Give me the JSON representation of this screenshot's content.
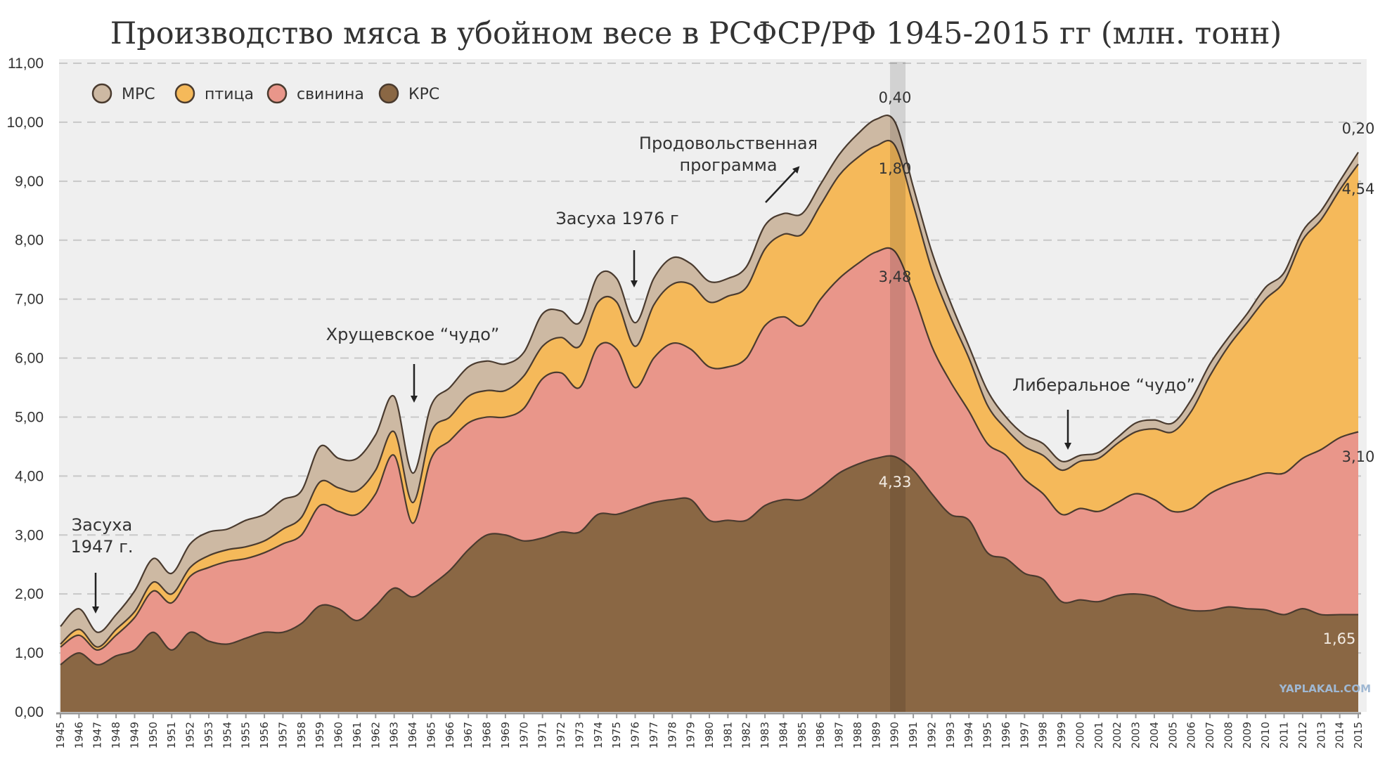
{
  "chart_data": {
    "type": "area",
    "stacked": true,
    "title": "Производство мяса в убойном весе в РСФСР/РФ 1945-2015 гг (млн. тонн)",
    "xlabel": "",
    "ylabel": "",
    "ylim": [
      0,
      11
    ],
    "yticks": [
      "0,00",
      "1,00",
      "2,00",
      "3,00",
      "4,00",
      "5,00",
      "6,00",
      "7,00",
      "8,00",
      "9,00",
      "10,00",
      "11,00"
    ],
    "grid": true,
    "legend_position": "top-left",
    "x": [
      1945,
      1946,
      1947,
      1948,
      1949,
      1950,
      1951,
      1952,
      1953,
      1954,
      1955,
      1956,
      1957,
      1958,
      1959,
      1960,
      1961,
      1962,
      1963,
      1964,
      1965,
      1966,
      1967,
      1968,
      1969,
      1970,
      1971,
      1972,
      1973,
      1974,
      1975,
      1976,
      1977,
      1978,
      1979,
      1980,
      1981,
      1982,
      1983,
      1984,
      1985,
      1986,
      1987,
      1988,
      1989,
      1990,
      1991,
      1992,
      1993,
      1994,
      1995,
      1996,
      1997,
      1998,
      1999,
      2000,
      2001,
      2002,
      2003,
      2004,
      2005,
      2006,
      2007,
      2008,
      2009,
      2010,
      2011,
      2012,
      2013,
      2014,
      2015
    ],
    "series": [
      {
        "name": "КРС",
        "color": "#8a6744",
        "values": [
          0.8,
          1.0,
          0.8,
          0.95,
          1.05,
          1.35,
          1.05,
          1.35,
          1.2,
          1.15,
          1.25,
          1.35,
          1.35,
          1.5,
          1.8,
          1.75,
          1.55,
          1.8,
          2.1,
          1.95,
          2.15,
          2.4,
          2.75,
          3.0,
          3.0,
          2.9,
          2.95,
          3.05,
          3.05,
          3.35,
          3.35,
          3.45,
          3.55,
          3.6,
          3.6,
          3.25,
          3.25,
          3.25,
          3.5,
          3.6,
          3.6,
          3.8,
          4.05,
          4.2,
          4.3,
          4.33,
          4.1,
          3.7,
          3.35,
          3.25,
          2.7,
          2.6,
          2.35,
          2.25,
          1.87,
          1.9,
          1.87,
          1.97,
          2.0,
          1.95,
          1.8,
          1.72,
          1.72,
          1.78,
          1.75,
          1.73,
          1.65,
          1.75,
          1.65,
          1.65,
          1.65
        ]
      },
      {
        "name": "свинина",
        "color": "#e9968a",
        "values": [
          0.3,
          0.3,
          0.25,
          0.35,
          0.55,
          0.7,
          0.8,
          0.95,
          1.25,
          1.4,
          1.35,
          1.35,
          1.5,
          1.5,
          1.7,
          1.65,
          1.8,
          1.9,
          2.25,
          1.25,
          2.15,
          2.2,
          2.15,
          2.0,
          2.0,
          2.25,
          2.7,
          2.7,
          2.45,
          2.85,
          2.8,
          2.05,
          2.45,
          2.65,
          2.55,
          2.6,
          2.6,
          2.75,
          3.05,
          3.1,
          2.95,
          3.2,
          3.3,
          3.4,
          3.5,
          3.48,
          3.0,
          2.5,
          2.25,
          1.85,
          1.85,
          1.75,
          1.6,
          1.45,
          1.48,
          1.55,
          1.53,
          1.58,
          1.7,
          1.65,
          1.6,
          1.73,
          1.98,
          2.07,
          2.2,
          2.32,
          2.4,
          2.55,
          2.8,
          3.0,
          3.1
        ]
      },
      {
        "name": "птица",
        "color": "#f5b95a",
        "values": [
          0.05,
          0.1,
          0.05,
          0.1,
          0.1,
          0.15,
          0.15,
          0.15,
          0.2,
          0.2,
          0.2,
          0.2,
          0.25,
          0.3,
          0.4,
          0.4,
          0.4,
          0.4,
          0.4,
          0.35,
          0.45,
          0.4,
          0.45,
          0.45,
          0.45,
          0.55,
          0.55,
          0.6,
          0.7,
          0.75,
          0.8,
          0.7,
          0.9,
          1.0,
          1.1,
          1.1,
          1.2,
          1.2,
          1.3,
          1.4,
          1.55,
          1.6,
          1.75,
          1.8,
          1.8,
          1.8,
          1.5,
          1.3,
          1.1,
          0.9,
          0.65,
          0.45,
          0.55,
          0.65,
          0.75,
          0.8,
          0.9,
          1.0,
          1.05,
          1.2,
          1.35,
          1.65,
          2.0,
          2.35,
          2.65,
          2.95,
          3.25,
          3.7,
          3.9,
          4.2,
          4.54
        ]
      },
      {
        "name": "МРС",
        "color": "#cdb9a3",
        "values": [
          0.3,
          0.35,
          0.25,
          0.25,
          0.35,
          0.4,
          0.35,
          0.4,
          0.4,
          0.35,
          0.45,
          0.45,
          0.5,
          0.45,
          0.6,
          0.5,
          0.55,
          0.6,
          0.6,
          0.5,
          0.45,
          0.5,
          0.5,
          0.5,
          0.45,
          0.4,
          0.55,
          0.45,
          0.4,
          0.45,
          0.4,
          0.4,
          0.45,
          0.45,
          0.35,
          0.35,
          0.3,
          0.35,
          0.4,
          0.35,
          0.35,
          0.35,
          0.35,
          0.4,
          0.45,
          0.4,
          0.3,
          0.3,
          0.25,
          0.2,
          0.25,
          0.2,
          0.2,
          0.2,
          0.15,
          0.1,
          0.1,
          0.1,
          0.15,
          0.15,
          0.15,
          0.2,
          0.2,
          0.15,
          0.15,
          0.2,
          0.15,
          0.15,
          0.15,
          0.15,
          0.2
        ]
      }
    ],
    "legend": [
      "МРС",
      "птица",
      "свинина",
      "КРС"
    ],
    "data_labels": {
      "1990": [
        "0,40",
        "1,80",
        "3,48",
        "4,33"
      ],
      "2015": [
        "0,20",
        "4,54",
        "3,10",
        "1,65"
      ]
    },
    "annotations": [
      {
        "year": 1947,
        "lines": [
          "Засуха",
          "1947 г."
        ]
      },
      {
        "year": 1964,
        "lines": [
          "Хрущевское “чудо”"
        ]
      },
      {
        "year": 1976,
        "lines": [
          "Засуха 1976 г"
        ]
      },
      {
        "year": 1988,
        "lines": [
          "Продовольственная",
          "программа"
        ]
      },
      {
        "year": 1999,
        "lines": [
          "Либеральное “чудо”"
        ]
      }
    ]
  },
  "watermark": "YAPLAKAL.COM",
  "colors": {
    "plot_bg": "#efefef",
    "outline": "#4a3b2f"
  }
}
